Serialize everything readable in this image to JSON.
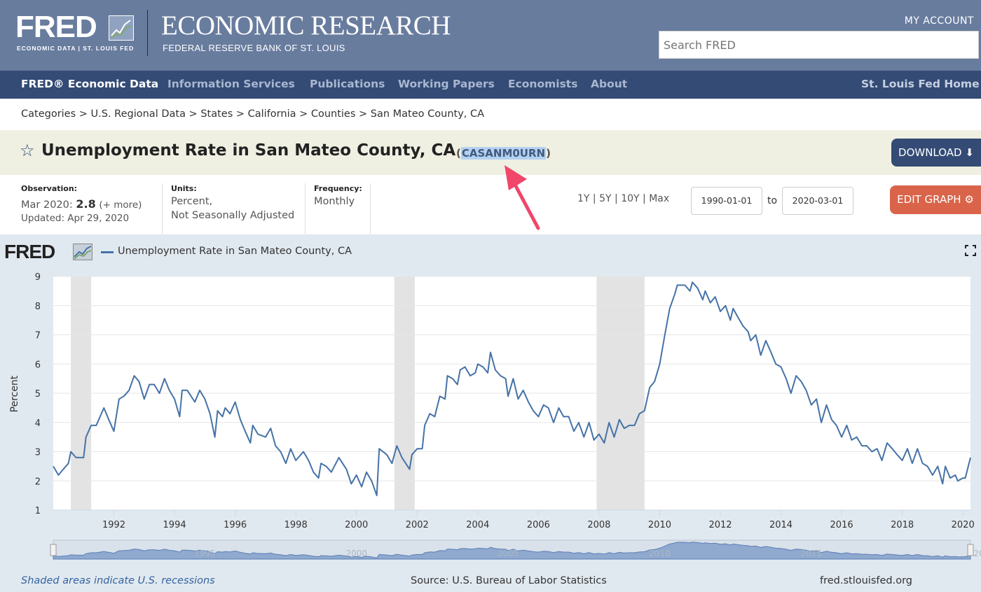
{
  "header": {
    "logo_text": "FRED",
    "logo_subtext": "ECONOMIC DATA  |  ST. LOUIS FED",
    "title": "ECONOMIC RESEARCH",
    "subtitle": "FEDERAL RESERVE BANK OF ST. LOUIS",
    "my_account": "MY ACCOUNT",
    "search_placeholder": "Search FRED"
  },
  "nav": {
    "items": [
      "FRED® Economic Data",
      "Information Services",
      "Publications",
      "Working Papers",
      "Economists",
      "About"
    ],
    "right": "St. Louis Fed Home"
  },
  "breadcrumb": "Categories > U.S. Regional Data > States > California > Counties > San Mateo County, CA",
  "series": {
    "title": "Unemployment Rate in San Mateo County, CA",
    "id": "CASANM0URN",
    "download_label": "DOWNLOAD"
  },
  "info": {
    "observation_label": "Observation:",
    "observation_date": "Mar 2020:",
    "observation_value": "2.8",
    "observation_more": "(+ more)",
    "updated": "Updated: Apr 29, 2020",
    "units_label": "Units:",
    "units_line1": "Percent,",
    "units_line2": "Not Seasonally Adjusted",
    "frequency_label": "Frequency:",
    "frequency_value": "Monthly"
  },
  "range_buttons": [
    "1Y",
    "5Y",
    "10Y",
    "Max"
  ],
  "date_from": "1990-01-01",
  "date_to_label": "to",
  "date_to": "2020-03-01",
  "edit_label": "EDIT GRAPH",
  "chart_header": {
    "logo": "FRED",
    "legend": "Unemployment Rate in San Mateo County, CA"
  },
  "chart_data": {
    "type": "line",
    "ylabel": "Percent",
    "ylim": [
      1,
      9
    ],
    "yticks": [
      1,
      2,
      3,
      4,
      5,
      6,
      7,
      8,
      9
    ],
    "xlim": [
      1990.0,
      2020.25
    ],
    "xticks": [
      "1992",
      "1994",
      "1996",
      "1998",
      "2000",
      "2002",
      "2004",
      "2006",
      "2008",
      "2010",
      "2012",
      "2014",
      "2016",
      "2018",
      "2020"
    ],
    "recessions": [
      [
        1990.58,
        1991.25
      ],
      [
        2001.25,
        2001.92
      ],
      [
        2007.92,
        2009.5
      ]
    ],
    "series": [
      {
        "name": "Unemployment Rate in San Mateo County, CA",
        "color": "#4572a7",
        "points": [
          [
            1990.0,
            2.5
          ],
          [
            1990.17,
            2.2
          ],
          [
            1990.33,
            2.4
          ],
          [
            1990.5,
            2.6
          ],
          [
            1990.58,
            3.0
          ],
          [
            1990.75,
            2.8
          ],
          [
            1991.0,
            2.8
          ],
          [
            1991.08,
            3.5
          ],
          [
            1991.25,
            3.9
          ],
          [
            1991.42,
            3.9
          ],
          [
            1991.67,
            4.5
          ],
          [
            1991.83,
            4.1
          ],
          [
            1992.0,
            3.7
          ],
          [
            1992.17,
            4.8
          ],
          [
            1992.33,
            4.9
          ],
          [
            1992.5,
            5.1
          ],
          [
            1992.67,
            5.6
          ],
          [
            1992.83,
            5.4
          ],
          [
            1993.0,
            4.8
          ],
          [
            1993.17,
            5.3
          ],
          [
            1993.33,
            5.3
          ],
          [
            1993.5,
            5.0
          ],
          [
            1993.67,
            5.5
          ],
          [
            1993.83,
            5.1
          ],
          [
            1994.0,
            4.8
          ],
          [
            1994.17,
            4.2
          ],
          [
            1994.25,
            5.1
          ],
          [
            1994.42,
            5.1
          ],
          [
            1994.67,
            4.7
          ],
          [
            1994.83,
            5.1
          ],
          [
            1995.0,
            4.8
          ],
          [
            1995.17,
            4.3
          ],
          [
            1995.33,
            3.5
          ],
          [
            1995.42,
            4.4
          ],
          [
            1995.58,
            4.2
          ],
          [
            1995.67,
            4.5
          ],
          [
            1995.83,
            4.3
          ],
          [
            1996.0,
            4.7
          ],
          [
            1996.17,
            4.1
          ],
          [
            1996.33,
            3.7
          ],
          [
            1996.5,
            3.3
          ],
          [
            1996.58,
            3.9
          ],
          [
            1996.75,
            3.6
          ],
          [
            1997.0,
            3.5
          ],
          [
            1997.17,
            3.8
          ],
          [
            1997.33,
            3.2
          ],
          [
            1997.5,
            3.0
          ],
          [
            1997.67,
            2.6
          ],
          [
            1997.83,
            3.1
          ],
          [
            1998.0,
            2.7
          ],
          [
            1998.25,
            3.0
          ],
          [
            1998.42,
            2.7
          ],
          [
            1998.58,
            2.3
          ],
          [
            1998.75,
            2.1
          ],
          [
            1998.83,
            2.6
          ],
          [
            1999.0,
            2.5
          ],
          [
            1999.17,
            2.3
          ],
          [
            1999.42,
            2.8
          ],
          [
            1999.67,
            2.4
          ],
          [
            1999.83,
            1.9
          ],
          [
            2000.0,
            2.2
          ],
          [
            2000.17,
            1.8
          ],
          [
            2000.33,
            2.3
          ],
          [
            2000.5,
            2.0
          ],
          [
            2000.67,
            1.5
          ],
          [
            2000.75,
            3.1
          ],
          [
            2001.0,
            2.9
          ],
          [
            2001.17,
            2.6
          ],
          [
            2001.33,
            3.2
          ],
          [
            2001.5,
            2.8
          ],
          [
            2001.75,
            2.4
          ],
          [
            2001.83,
            2.9
          ],
          [
            2002.0,
            3.1
          ],
          [
            2002.17,
            3.1
          ],
          [
            2002.25,
            3.9
          ],
          [
            2002.42,
            4.3
          ],
          [
            2002.58,
            4.2
          ],
          [
            2002.75,
            4.9
          ],
          [
            2002.92,
            4.8
          ],
          [
            2003.0,
            5.6
          ],
          [
            2003.17,
            5.5
          ],
          [
            2003.33,
            5.3
          ],
          [
            2003.42,
            5.8
          ],
          [
            2003.58,
            5.9
          ],
          [
            2003.75,
            5.6
          ],
          [
            2003.92,
            5.7
          ],
          [
            2004.0,
            6.0
          ],
          [
            2004.17,
            5.9
          ],
          [
            2004.33,
            5.7
          ],
          [
            2004.42,
            6.4
          ],
          [
            2004.58,
            5.8
          ],
          [
            2004.75,
            5.6
          ],
          [
            2004.92,
            5.5
          ],
          [
            2005.0,
            4.9
          ],
          [
            2005.17,
            5.5
          ],
          [
            2005.33,
            4.8
          ],
          [
            2005.5,
            5.1
          ],
          [
            2005.67,
            4.7
          ],
          [
            2005.83,
            4.4
          ],
          [
            2006.0,
            4.2
          ],
          [
            2006.17,
            4.6
          ],
          [
            2006.33,
            4.5
          ],
          [
            2006.5,
            4.0
          ],
          [
            2006.67,
            4.5
          ],
          [
            2006.83,
            4.2
          ],
          [
            2007.0,
            4.2
          ],
          [
            2007.17,
            3.7
          ],
          [
            2007.33,
            4.0
          ],
          [
            2007.5,
            3.5
          ],
          [
            2007.67,
            4.0
          ],
          [
            2007.83,
            3.4
          ],
          [
            2008.0,
            3.6
          ],
          [
            2008.17,
            3.3
          ],
          [
            2008.33,
            4.0
          ],
          [
            2008.5,
            3.5
          ],
          [
            2008.67,
            4.1
          ],
          [
            2008.83,
            3.8
          ],
          [
            2009.0,
            3.9
          ],
          [
            2009.17,
            3.9
          ],
          [
            2009.33,
            4.3
          ],
          [
            2009.5,
            4.4
          ],
          [
            2009.67,
            5.2
          ],
          [
            2009.83,
            5.4
          ],
          [
            2010.0,
            6.0
          ],
          [
            2010.17,
            7.0
          ],
          [
            2010.33,
            7.9
          ],
          [
            2010.5,
            8.4
          ],
          [
            2010.58,
            8.7
          ],
          [
            2010.83,
            8.7
          ],
          [
            2011.0,
            8.5
          ],
          [
            2011.08,
            8.8
          ],
          [
            2011.25,
            8.6
          ],
          [
            2011.42,
            8.2
          ],
          [
            2011.5,
            8.5
          ],
          [
            2011.67,
            8.1
          ],
          [
            2011.83,
            8.3
          ],
          [
            2012.0,
            7.8
          ],
          [
            2012.17,
            8.0
          ],
          [
            2012.33,
            7.5
          ],
          [
            2012.42,
            7.9
          ],
          [
            2012.58,
            7.6
          ],
          [
            2012.75,
            7.3
          ],
          [
            2012.92,
            7.1
          ],
          [
            2013.0,
            6.8
          ],
          [
            2013.17,
            7.0
          ],
          [
            2013.33,
            6.3
          ],
          [
            2013.5,
            6.8
          ],
          [
            2013.67,
            6.4
          ],
          [
            2013.83,
            6.0
          ],
          [
            2014.0,
            5.9
          ],
          [
            2014.17,
            5.5
          ],
          [
            2014.33,
            5.0
          ],
          [
            2014.5,
            5.6
          ],
          [
            2014.67,
            5.4
          ],
          [
            2014.83,
            5.1
          ],
          [
            2015.0,
            4.6
          ],
          [
            2015.17,
            4.8
          ],
          [
            2015.33,
            4.0
          ],
          [
            2015.5,
            4.6
          ],
          [
            2015.67,
            4.1
          ],
          [
            2015.83,
            3.9
          ],
          [
            2016.0,
            3.5
          ],
          [
            2016.17,
            3.9
          ],
          [
            2016.33,
            3.4
          ],
          [
            2016.5,
            3.5
          ],
          [
            2016.67,
            3.2
          ],
          [
            2016.83,
            3.2
          ],
          [
            2017.0,
            3.0
          ],
          [
            2017.17,
            3.1
          ],
          [
            2017.33,
            2.7
          ],
          [
            2017.5,
            3.3
          ],
          [
            2017.67,
            3.1
          ],
          [
            2017.83,
            2.9
          ],
          [
            2018.0,
            2.7
          ],
          [
            2018.17,
            3.1
          ],
          [
            2018.33,
            2.6
          ],
          [
            2018.5,
            3.1
          ],
          [
            2018.67,
            2.6
          ],
          [
            2018.83,
            2.5
          ],
          [
            2019.0,
            2.2
          ],
          [
            2019.17,
            2.5
          ],
          [
            2019.33,
            1.9
          ],
          [
            2019.42,
            2.5
          ],
          [
            2019.58,
            2.1
          ],
          [
            2019.75,
            2.2
          ],
          [
            2019.83,
            2.0
          ],
          [
            2020.0,
            2.1
          ],
          [
            2020.08,
            2.1
          ],
          [
            2020.25,
            2.8
          ]
        ]
      }
    ],
    "navigator_ticks": [
      "1995",
      "2000",
      "2005",
      "2010",
      "2015",
      "20"
    ]
  },
  "footer": {
    "recessions_note": "Shaded areas indicate U.S. recessions",
    "source": "Source: U.S. Bureau of Labor Statistics",
    "url": "fred.stlouisfed.org"
  },
  "colors": {
    "header_bg": "#687c9e",
    "nav_bg": "#334b75",
    "title_band_bg": "#eff0e2",
    "chart_bg": "#e1e9f0",
    "download_bg": "#334b75",
    "edit_bg": "#d9644a",
    "annotation_arrow": "#f0466a"
  }
}
